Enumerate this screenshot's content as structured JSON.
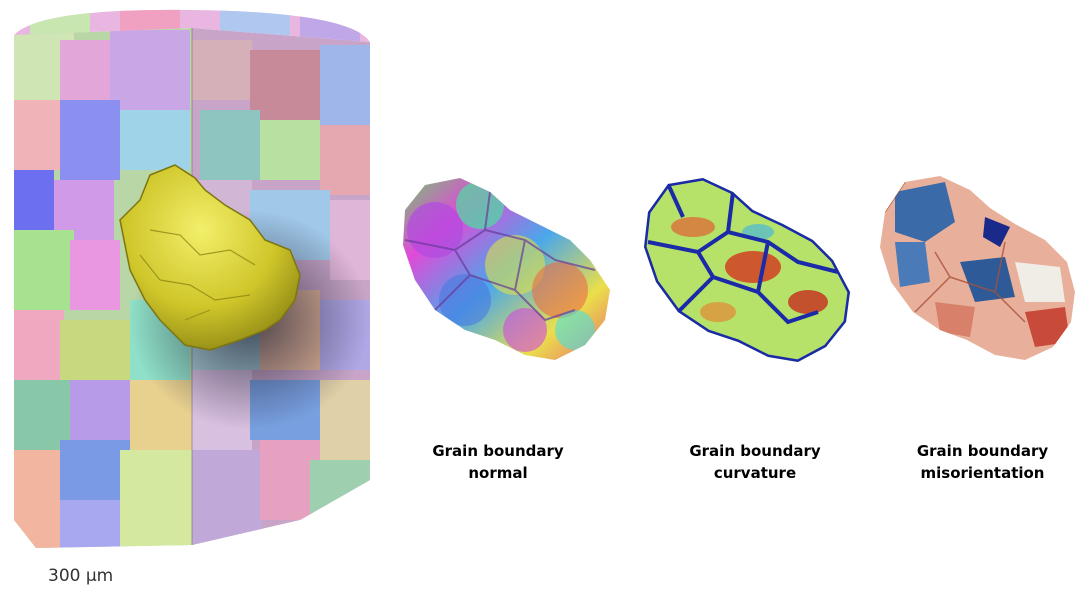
{
  "figure": {
    "scale_label": "300 µm",
    "captions": [
      {
        "line1": "Grain boundary",
        "line2": "normal"
      },
      {
        "line1": "Grain boundary",
        "line2": "curvature"
      },
      {
        "line1": "Grain boundary",
        "line2": "misorientation"
      }
    ]
  }
}
